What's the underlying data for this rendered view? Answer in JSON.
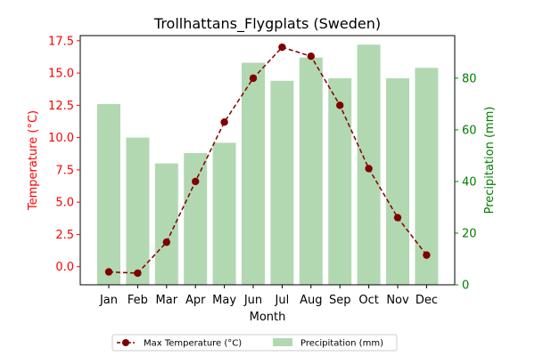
{
  "chart_data": {
    "type": "bar+line",
    "title": "Trollhattans_Flygplats (Sweden)",
    "xlabel": "Month",
    "ylabel_left": "Temperature (°C)",
    "ylabel_right": "Precipitation (mm)",
    "categories": [
      "Jan",
      "Feb",
      "Mar",
      "Apr",
      "May",
      "Jun",
      "Jul",
      "Aug",
      "Sep",
      "Oct",
      "Nov",
      "Dec"
    ],
    "ylim_left": [
      -1.4,
      17.9
    ],
    "ylim_right": [
      0,
      96.5
    ],
    "yticks_left": [
      "0.0",
      "2.5",
      "5.0",
      "7.5",
      "10.0",
      "12.5",
      "15.0",
      "17.5"
    ],
    "yticks_left_values": [
      0,
      2.5,
      5,
      7.5,
      10,
      12.5,
      15,
      17.5
    ],
    "yticks_right": [
      "0",
      "20",
      "40",
      "60",
      "80"
    ],
    "yticks_right_values": [
      0,
      20,
      40,
      60,
      80
    ],
    "series": [
      {
        "name": "Max Temperature (°C)",
        "type": "line",
        "axis": "left",
        "color": "#800000",
        "values": [
          -0.4,
          -0.5,
          1.9,
          6.6,
          11.2,
          14.6,
          17.0,
          16.3,
          12.5,
          7.6,
          3.8,
          0.9
        ]
      },
      {
        "name": "Precipitation (mm)",
        "type": "bar",
        "axis": "right",
        "color": "#b2d8b2",
        "values": [
          70,
          57,
          47,
          51,
          55,
          86,
          79,
          88,
          80,
          93,
          80,
          84
        ]
      }
    ],
    "left_axis_color": "#ff0000",
    "right_axis_color": "#008000",
    "legend_position": "bottom-center",
    "grid": false
  }
}
